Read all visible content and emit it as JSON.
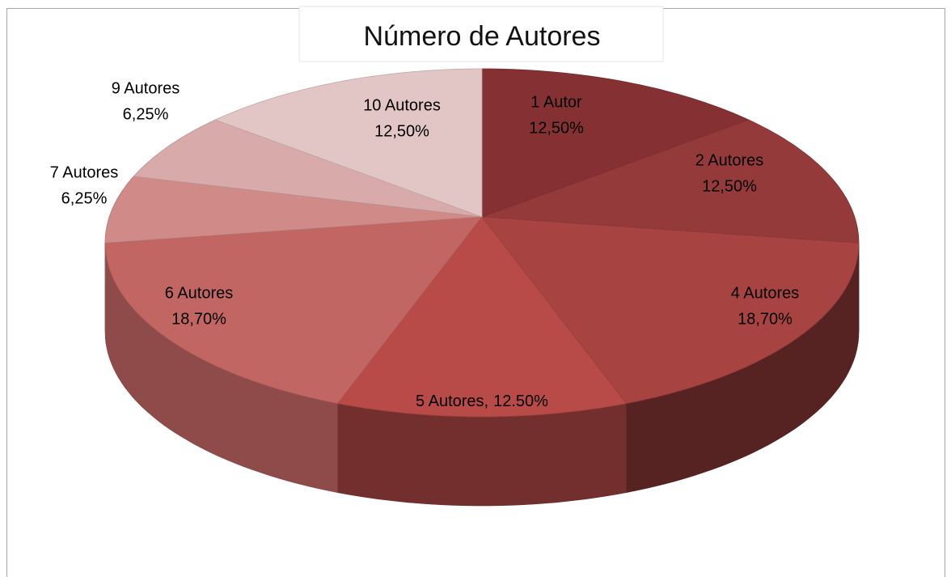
{
  "chart_data": {
    "type": "pie",
    "title": "Número de Autores",
    "categories": [
      "1 Autor",
      "2 Autores",
      "4 Autores",
      "5 Autores,",
      "6 Autores",
      "7 Autores",
      "9 Autores",
      "10 Autores"
    ],
    "values": [
      12.5,
      12.5,
      18.7,
      12.5,
      18.7,
      6.25,
      6.25,
      12.5
    ],
    "value_labels": [
      "12,50%",
      "12,50%",
      "18,70%",
      "12.50%",
      "18,70%",
      "6,25%",
      "6,25%",
      "12,50%"
    ],
    "colors": [
      "#853033",
      "#953a3a",
      "#a74341",
      "#b84b48",
      "#c26663",
      "#d08b89",
      "#d8abaa",
      "#e2c5c5"
    ]
  }
}
